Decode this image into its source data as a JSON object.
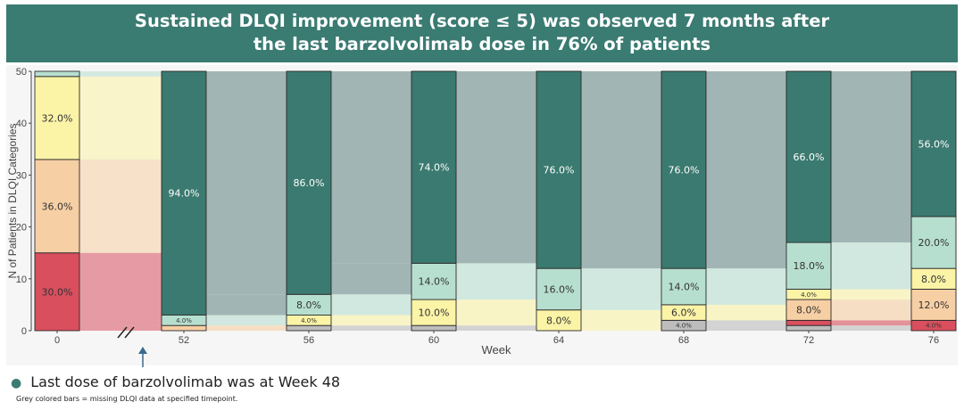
{
  "title": {
    "line1": "Sustained DLQI improvement (score ≤ 5) was observed 7 months after",
    "line2": "the last barzolvolimab dose in 76% of patients"
  },
  "note": "Last dose of barzolvolimab was at Week 48",
  "footnote": "Grey colored bars = missing DLQI data at specified timepoint.",
  "colors": {
    "dlqi_0_1": "#3b7a70",
    "dlqi_2_5": "#b7dfd0",
    "dlqi_6_10": "#fbf3a6",
    "dlqi_11_20": "#f7cfa4",
    "dlqi_21_30": "#d94f5e",
    "missing": "#bdbdbd",
    "flow_default": "#92aaa8",
    "banner": "#3a7b72"
  },
  "chart_data": {
    "type": "alluvial",
    "xlabel": "Week",
    "ylabel": "N of Patients in DLQI Categories",
    "ylim": [
      0,
      50
    ],
    "yticks": [
      0,
      10,
      20,
      30,
      40,
      50
    ],
    "axis_break_between": [
      "0",
      "52"
    ],
    "total_n": 50,
    "category_order_bottom_to_top": [
      "missing",
      "dlqi_21_30",
      "dlqi_11_20",
      "dlqi_6_10",
      "dlqi_2_5",
      "dlqi_0_1"
    ],
    "columns": [
      {
        "week": "0",
        "stack": [
          {
            "cat": "dlqi_21_30",
            "n": 15,
            "label": "30.0%"
          },
          {
            "cat": "dlqi_11_20",
            "n": 18,
            "label": "36.0%"
          },
          {
            "cat": "dlqi_6_10",
            "n": 16,
            "label": "32.0%"
          },
          {
            "cat": "dlqi_2_5",
            "n": 1,
            "label": "2.0%"
          }
        ]
      },
      {
        "week": "52",
        "stack": [
          {
            "cat": "dlqi_11_20",
            "n": 1,
            "label": "2.0%"
          },
          {
            "cat": "dlqi_2_5",
            "n": 2,
            "label": "4.0%"
          },
          {
            "cat": "dlqi_0_1",
            "n": 47,
            "label": "94.0%"
          }
        ]
      },
      {
        "week": "56",
        "stack": [
          {
            "cat": "missing",
            "n": 1,
            "label": "2.0%"
          },
          {
            "cat": "dlqi_6_10",
            "n": 2,
            "label": "4.0%"
          },
          {
            "cat": "dlqi_2_5",
            "n": 4,
            "label": "8.0%"
          },
          {
            "cat": "dlqi_0_1",
            "n": 43,
            "label": "86.0%"
          }
        ]
      },
      {
        "week": "60",
        "stack": [
          {
            "cat": "missing",
            "n": 1,
            "label": "2.0%"
          },
          {
            "cat": "dlqi_6_10",
            "n": 5,
            "label": "10.0%"
          },
          {
            "cat": "dlqi_2_5",
            "n": 7,
            "label": "14.0%"
          },
          {
            "cat": "dlqi_0_1",
            "n": 37,
            "label": "74.0%"
          }
        ]
      },
      {
        "week": "64",
        "stack": [
          {
            "cat": "dlqi_6_10",
            "n": 4,
            "label": "8.0%"
          },
          {
            "cat": "dlqi_2_5",
            "n": 8,
            "label": "16.0%"
          },
          {
            "cat": "dlqi_0_1",
            "n": 38,
            "label": "76.0%"
          }
        ]
      },
      {
        "week": "68",
        "stack": [
          {
            "cat": "missing",
            "n": 2,
            "label": "4.0%"
          },
          {
            "cat": "dlqi_6_10",
            "n": 3,
            "label": "6.0%"
          },
          {
            "cat": "dlqi_2_5",
            "n": 7,
            "label": "14.0%"
          },
          {
            "cat": "dlqi_0_1",
            "n": 38,
            "label": "76.0%"
          }
        ]
      },
      {
        "week": "72",
        "stack": [
          {
            "cat": "missing",
            "n": 1,
            "label": "2.0%"
          },
          {
            "cat": "dlqi_21_30",
            "n": 1,
            "label": "2.0%"
          },
          {
            "cat": "dlqi_11_20",
            "n": 4,
            "label": "8.0%"
          },
          {
            "cat": "dlqi_6_10",
            "n": 2,
            "label": "4.0%"
          },
          {
            "cat": "dlqi_2_5",
            "n": 9,
            "label": "18.0%"
          },
          {
            "cat": "dlqi_0_1",
            "n": 33,
            "label": "66.0%"
          }
        ]
      },
      {
        "week": "76",
        "stack": [
          {
            "cat": "dlqi_21_30",
            "n": 2,
            "label": "4.0%"
          },
          {
            "cat": "dlqi_11_20",
            "n": 6,
            "label": "12.0%"
          },
          {
            "cat": "dlqi_6_10",
            "n": 4,
            "label": "8.0%"
          },
          {
            "cat": "dlqi_2_5",
            "n": 10,
            "label": "20.0%"
          },
          {
            "cat": "dlqi_0_1",
            "n": 28,
            "label": "56.0%"
          }
        ]
      }
    ]
  }
}
